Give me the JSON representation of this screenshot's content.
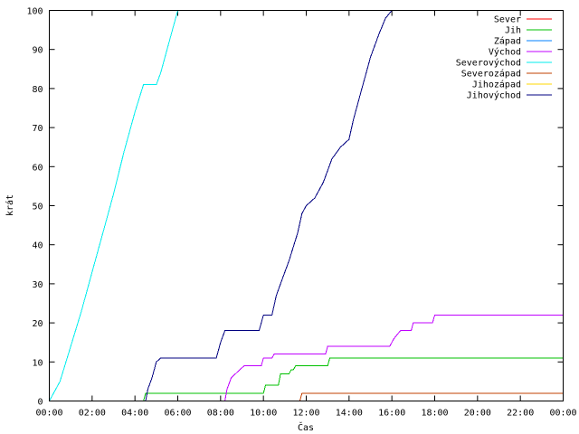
{
  "chart_data": {
    "type": "line",
    "xlabel": "Čas",
    "ylabel": "krát",
    "ylim": [
      0,
      100
    ],
    "xlim_hours": [
      0,
      24
    ],
    "y_ticks": [
      0,
      10,
      20,
      30,
      40,
      50,
      60,
      70,
      80,
      90,
      100
    ],
    "x_ticks": [
      {
        "hour": 0,
        "label": "00:00"
      },
      {
        "hour": 2,
        "label": "02:00"
      },
      {
        "hour": 4,
        "label": "04:00"
      },
      {
        "hour": 6,
        "label": "06:00"
      },
      {
        "hour": 8,
        "label": "08:00"
      },
      {
        "hour": 10,
        "label": "10:00"
      },
      {
        "hour": 12,
        "label": "12:00"
      },
      {
        "hour": 14,
        "label": "14:00"
      },
      {
        "hour": 16,
        "label": "16:00"
      },
      {
        "hour": 18,
        "label": "18:00"
      },
      {
        "hour": 20,
        "label": "20:00"
      },
      {
        "hour": 22,
        "label": "22:00"
      },
      {
        "hour": 24,
        "label": "00:00"
      }
    ],
    "legend_position": "top-right",
    "grid": false,
    "series": [
      {
        "name": "Sever",
        "color": "#ff0000",
        "points": []
      },
      {
        "name": "Jih",
        "color": "#00c000",
        "points": [
          [
            0,
            0
          ],
          [
            4.4,
            0
          ],
          [
            4.5,
            2
          ],
          [
            10,
            2
          ],
          [
            10.1,
            4
          ],
          [
            10.7,
            4
          ],
          [
            10.8,
            7
          ],
          [
            11.2,
            7
          ],
          [
            11.3,
            8
          ],
          [
            11.4,
            8
          ],
          [
            11.5,
            9
          ],
          [
            13,
            9
          ],
          [
            13.1,
            11
          ],
          [
            24,
            11
          ]
        ]
      },
      {
        "name": "Západ",
        "color": "#0080ff",
        "points": []
      },
      {
        "name": "Východ",
        "color": "#c000ff",
        "points": [
          [
            0,
            0
          ],
          [
            8.2,
            0
          ],
          [
            8.3,
            3
          ],
          [
            8.5,
            6
          ],
          [
            8.7,
            7
          ],
          [
            8.9,
            8
          ],
          [
            9.1,
            9
          ],
          [
            9.9,
            9
          ],
          [
            10,
            11
          ],
          [
            10.4,
            11
          ],
          [
            10.5,
            12
          ],
          [
            12.9,
            12
          ],
          [
            13,
            14
          ],
          [
            15.9,
            14
          ],
          [
            16.1,
            16
          ],
          [
            16.4,
            18
          ],
          [
            16.9,
            18
          ],
          [
            17,
            20
          ],
          [
            17.9,
            20
          ],
          [
            18,
            22
          ],
          [
            24,
            22
          ]
        ]
      },
      {
        "name": "Severovýchod",
        "color": "#00eeee",
        "points": [
          [
            0,
            0
          ],
          [
            0.5,
            5
          ],
          [
            1,
            14
          ],
          [
            1.5,
            23
          ],
          [
            2,
            33
          ],
          [
            2.5,
            43
          ],
          [
            3,
            53
          ],
          [
            3.5,
            64
          ],
          [
            4,
            74
          ],
          [
            4.4,
            81
          ],
          [
            5,
            81
          ],
          [
            5.2,
            84
          ],
          [
            5.5,
            90
          ],
          [
            6,
            100
          ]
        ]
      },
      {
        "name": "Severozápad",
        "color": "#c04000",
        "points": [
          [
            0,
            0
          ],
          [
            11.7,
            0
          ],
          [
            11.8,
            2
          ],
          [
            24,
            2
          ]
        ]
      },
      {
        "name": "Jihozápad",
        "color": "#ffd700",
        "points": []
      },
      {
        "name": "Jihovýchod",
        "color": "#000080",
        "points": [
          [
            0,
            0
          ],
          [
            4.5,
            0
          ],
          [
            4.6,
            3
          ],
          [
            4.8,
            6
          ],
          [
            5,
            10
          ],
          [
            5.2,
            11
          ],
          [
            7.8,
            11
          ],
          [
            8,
            15
          ],
          [
            8.2,
            18
          ],
          [
            9.8,
            18
          ],
          [
            10,
            22
          ],
          [
            10.4,
            22
          ],
          [
            10.6,
            27
          ],
          [
            10.8,
            30
          ],
          [
            11.2,
            36
          ],
          [
            11.6,
            43
          ],
          [
            11.8,
            48
          ],
          [
            12,
            50
          ],
          [
            12.4,
            52
          ],
          [
            12.8,
            56
          ],
          [
            13.2,
            62
          ],
          [
            13.6,
            65
          ],
          [
            14,
            67
          ],
          [
            14.2,
            72
          ],
          [
            14.4,
            76
          ],
          [
            14.6,
            80
          ],
          [
            14.8,
            84
          ],
          [
            15,
            88
          ],
          [
            15.4,
            94
          ],
          [
            15.7,
            98
          ],
          [
            16,
            100
          ]
        ]
      }
    ]
  }
}
